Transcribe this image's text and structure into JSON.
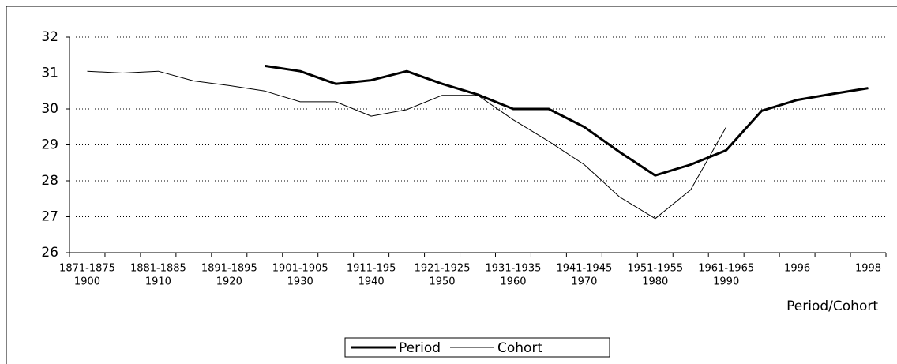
{
  "chart_data": {
    "type": "line",
    "x_label": "Period/Cohort",
    "categories": [
      [
        "1871-1875",
        "1900"
      ],
      null,
      [
        "1881-1885",
        "1910"
      ],
      null,
      [
        "1891-1895",
        "1920"
      ],
      null,
      [
        "1901-1905",
        "1930"
      ],
      null,
      [
        "1911-195",
        "1940"
      ],
      null,
      [
        "1921-1925",
        "1950"
      ],
      null,
      [
        "1931-1935",
        "1960"
      ],
      null,
      [
        "1941-1945",
        "1970"
      ],
      null,
      [
        "1951-1955",
        "1980"
      ],
      null,
      [
        "1961-1965",
        "1990"
      ],
      null,
      [
        "1996"
      ],
      null,
      [
        "1998"
      ]
    ],
    "series": [
      {
        "name": "Period",
        "color": "#000000",
        "width": 3,
        "values": [
          null,
          null,
          null,
          null,
          null,
          31.2,
          31.05,
          30.7,
          30.8,
          31.05,
          30.7,
          30.4,
          30.0,
          30.0,
          29.5,
          28.8,
          28.15,
          28.45,
          28.85,
          29.95,
          30.25,
          30.42,
          30.58
        ]
      },
      {
        "name": "Cohort",
        "color": "#000000",
        "width": 1,
        "values": [
          31.05,
          31.0,
          31.05,
          30.78,
          30.65,
          30.5,
          30.2,
          30.2,
          29.8,
          29.98,
          30.38,
          30.38,
          29.7,
          29.1,
          28.45,
          27.55,
          26.95,
          27.75,
          29.5,
          null,
          null,
          null,
          null
        ]
      }
    ],
    "ylim": [
      26,
      32
    ],
    "yticks": [
      26,
      27,
      28,
      29,
      30,
      31,
      32
    ],
    "grid": true,
    "legend": "bottom"
  }
}
